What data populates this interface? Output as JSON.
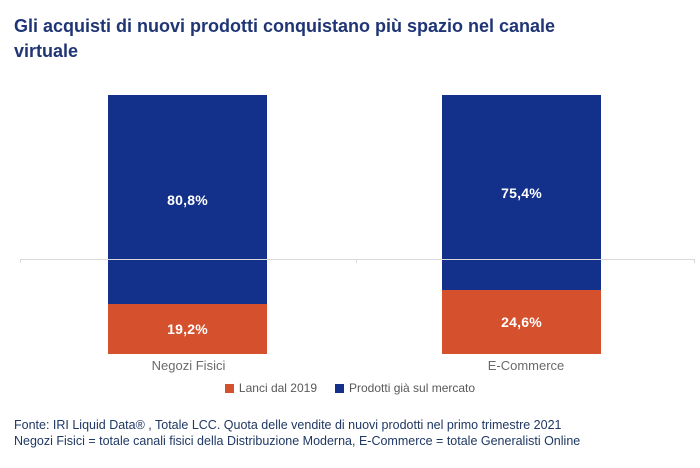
{
  "header": {
    "title_line1": "Gli acquisti di nuovi prodotti conquistano più spazio nel canale",
    "title_line2": "virtuale",
    "title_color": "#1f3575"
  },
  "chart_data": {
    "type": "bar",
    "stacked": true,
    "title": "Gli acquisti di nuovi prodotti conquistano più spazio nel canale virtuale",
    "categories": [
      "Negozi Fisici",
      "E-Commerce"
    ],
    "series": [
      {
        "name": "Lanci dal 2019",
        "color": "#d5502d",
        "values": [
          19.2,
          24.6
        ],
        "labels": [
          "19,2%",
          "24,6%"
        ]
      },
      {
        "name": "Prodotti già sul mercato",
        "color": "#13308a",
        "values": [
          80.8,
          75.4
        ],
        "labels": [
          "80,8%",
          "75,4%"
        ]
      }
    ],
    "ylim": [
      0,
      100
    ],
    "unit": "%",
    "grid": false,
    "legend_position": "bottom",
    "axis_color": "#d9d9d9",
    "data_label_color": "#ffffff"
  },
  "legend": {
    "items": [
      {
        "label": "Lanci dal 2019",
        "color": "#d5502d"
      },
      {
        "label": "Prodotti già sul mercato",
        "color": "#13308a"
      }
    ],
    "text_color": "#595959"
  },
  "footer": {
    "line1": "Fonte: IRI Liquid Data® , Totale LCC. Quota delle vendite di nuovi prodotti nel primo trimestre 2021",
    "line2": "Negozi Fisici = totale canali fisici della Distribuzione Moderna, E-Commerce = totale Generalisti Online",
    "color": "#1f3864"
  }
}
